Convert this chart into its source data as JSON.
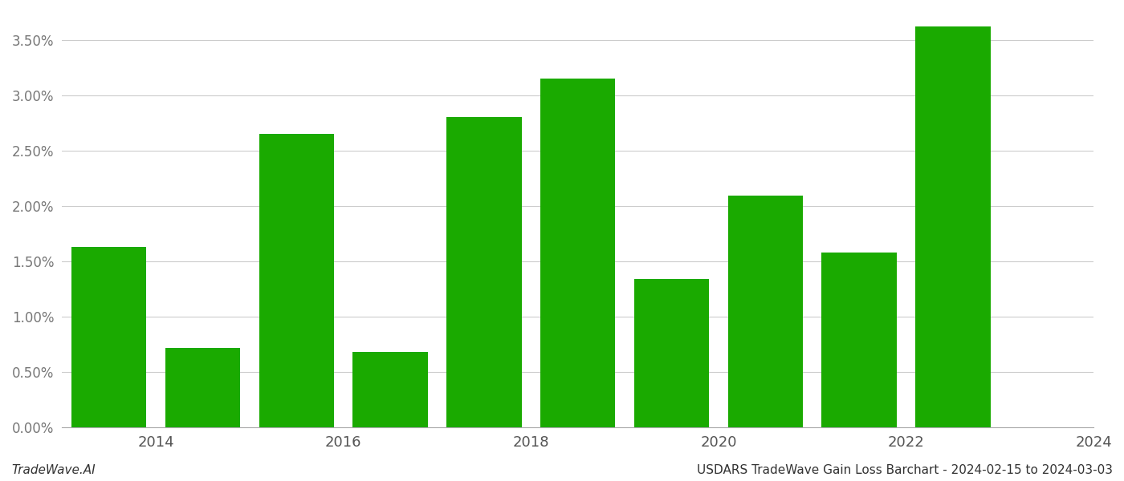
{
  "years": [
    2014,
    2015,
    2016,
    2017,
    2018,
    2019,
    2020,
    2021,
    2022,
    2023
  ],
  "values": [
    0.0163,
    0.0072,
    0.0265,
    0.0068,
    0.028,
    0.0315,
    0.0134,
    0.0209,
    0.0158,
    0.0362
  ],
  "bar_color": "#1aaa00",
  "background_color": "#ffffff",
  "grid_color": "#cccccc",
  "footer_left": "TradeWave.AI",
  "footer_right": "USDARS TradeWave Gain Loss Barchart - 2024-02-15 to 2024-03-03",
  "ylim": [
    0,
    0.0375
  ],
  "yticks": [
    0.0,
    0.005,
    0.01,
    0.015,
    0.02,
    0.025,
    0.03,
    0.035
  ],
  "xticks": [
    2014.5,
    2016.5,
    2018.5,
    2020.5,
    2022.5,
    2024.5
  ],
  "xticklabels": [
    "2014",
    "2016",
    "2018",
    "2020",
    "2022",
    "2024"
  ],
  "bar_width": 0.8,
  "figsize": [
    14.0,
    6.0
  ],
  "dpi": 100,
  "xlim": [
    2013.5,
    2024.5
  ]
}
